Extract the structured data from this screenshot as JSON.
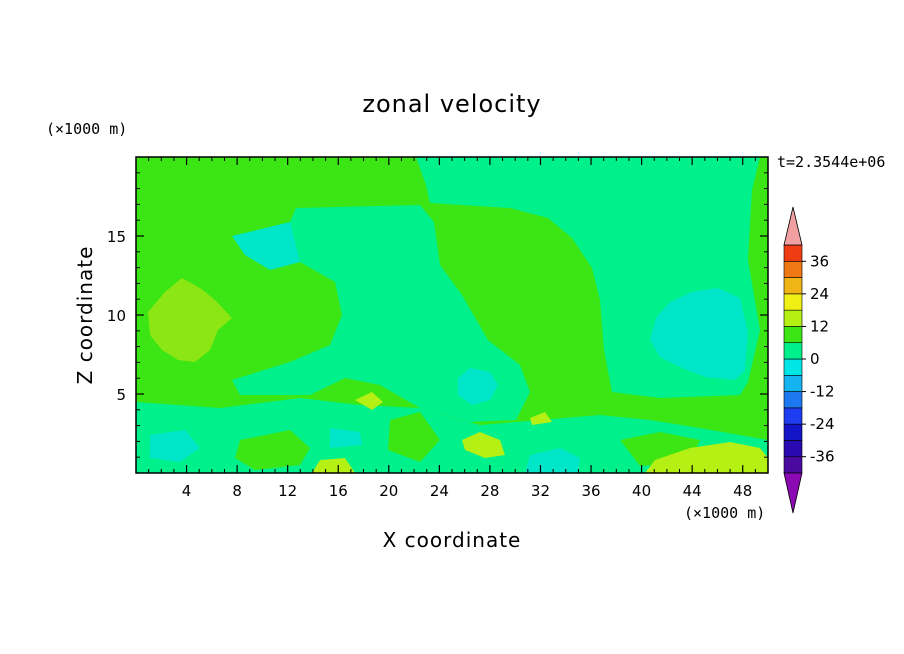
{
  "chart_data": {
    "type": "heatmap",
    "title": "zonal velocity",
    "xlabel": "X coordinate",
    "ylabel": "Z coordinate",
    "x_unit_label": "(×1000 m)",
    "y_unit_label": "(×1000 m)",
    "time_label": "t=2.3544e+06",
    "xlim": [
      0,
      50
    ],
    "ylim": [
      0,
      20
    ],
    "x_ticks": [
      4,
      8,
      12,
      16,
      20,
      24,
      28,
      32,
      36,
      40,
      44,
      48
    ],
    "y_ticks": [
      5,
      10,
      15
    ],
    "colorbar": {
      "levels": [
        -42,
        -36,
        -30,
        -24,
        -18,
        -12,
        -6,
        0,
        6,
        12,
        18,
        24,
        30,
        36,
        42
      ],
      "tick_labels": [
        "36",
        "24",
        "12",
        "0",
        "-12",
        "-24",
        "-36"
      ],
      "tick_values": [
        36,
        24,
        12,
        0,
        -12,
        -24,
        -36
      ],
      "colors": [
        "#4a0aa0",
        "#2a0ab0",
        "#1414c8",
        "#1e3cf0",
        "#1e78f0",
        "#14b4f0",
        "#00e6e6",
        "#00f08c",
        "#3ce614",
        "#b4f014",
        "#f0f014",
        "#f0b414",
        "#f07814",
        "#f03c14",
        "#e01414"
      ],
      "over_color": "#f0a0a0",
      "under_color": "#8c0ab4"
    },
    "regions": [
      {
        "level": "0 to 6",
        "color": "#3ce614",
        "description": "background"
      },
      {
        "level": "-6 to 0",
        "color": "#00f08c",
        "description": "central band and lower region"
      },
      {
        "level": "6 to 12",
        "color": "#8ce614",
        "description": "patch near x=4-10, z=8-12"
      },
      {
        "level": "-12 to -6",
        "color": "#00e6c8",
        "description": "patch near x=41-48, z=6-11"
      },
      {
        "level": "6 to 12",
        "color": "#b4f014",
        "description": "patch near x=40-50, z=0-2"
      }
    ]
  }
}
